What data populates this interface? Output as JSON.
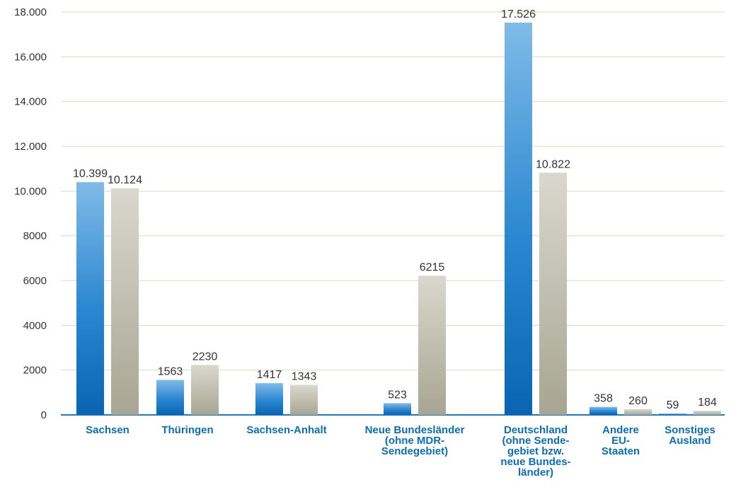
{
  "chart_data": {
    "type": "bar",
    "categories": [
      "Sachsen",
      "Thüringen",
      "Sachsen-Anhalt",
      "Neue Bundesländer\n(ohne MDR-\nSendegebiet)",
      "Deutschland\n(ohne Sende-\ngebiet bzw.\nneue Bundes-\nländer)",
      "Andere\nEU-\nStaaten",
      "Sonstiges\nAusland"
    ],
    "series": [
      {
        "values": [
          10399,
          1563,
          1417,
          523,
          17526,
          358,
          59
        ],
        "labels": [
          "10.399",
          "1563",
          "1417",
          "523",
          "17.526",
          "358",
          "59"
        ],
        "color": "#1a7cc7"
      },
      {
        "values": [
          10124,
          2230,
          1343,
          6215,
          10822,
          260,
          184
        ],
        "labels": [
          "10.124",
          "2230",
          "1343",
          "6215",
          "10.822",
          "260",
          "184"
        ],
        "color": "#b8b5a6"
      }
    ],
    "yticks": [
      0,
      2000,
      4000,
      6000,
      8000,
      10000,
      12000,
      14000,
      16000,
      18000
    ],
    "ytick_labels": [
      "0",
      "2000",
      "4000",
      "6000",
      "8000",
      "10.000",
      "12.000",
      "14.000",
      "16.000",
      "18.000"
    ],
    "ylim": [
      0,
      18000
    ],
    "grid": true,
    "title": "",
    "xlabel": "",
    "ylabel": ""
  }
}
